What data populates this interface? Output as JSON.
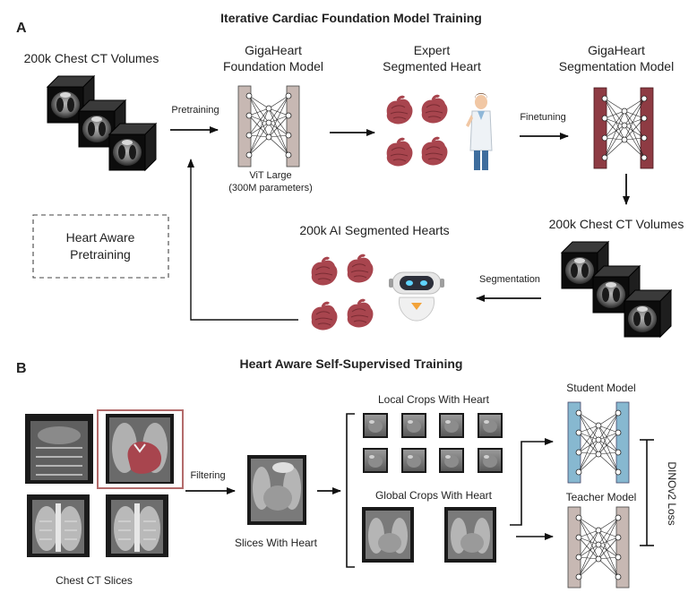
{
  "panel_a": {
    "label": "A",
    "title": "Iterative Cardiac Foundation Model Training",
    "chest_ct_volumes": "200k Chest CT Volumes",
    "pretraining": "Pretraining",
    "foundation_model_line1": "GigaHeart",
    "foundation_model_line2": "Foundation Model",
    "vit_line1": "ViT Large",
    "vit_line2": "(300M parameters)",
    "expert_line1": "Expert",
    "expert_line2": "Segmented Heart",
    "finetuning": "Finetuning",
    "seg_model_line1": "GigaHeart",
    "seg_model_line2": "Segmentation Model",
    "chest_ct_volumes_2": "200k Chest CT Volumes",
    "ai_segmented_hearts": "200k AI Segmented Hearts",
    "segmentation": "Segmentation",
    "heart_aware_line1": "Heart Aware",
    "heart_aware_line2": "Pretraining"
  },
  "panel_b": {
    "label": "B",
    "title": "Heart Aware Self-Supervised Training",
    "filtering": "Filtering",
    "chest_ct_slices": "Chest CT Slices",
    "slices_with_heart": "Slices With Heart",
    "local_crops": "Local Crops With Heart",
    "global_crops": "Global Crops With Heart",
    "student_model": "Student Model",
    "teacher_model": "Teacher Model",
    "dino_loss": "DINOv2 Loss"
  },
  "colors": {
    "heart": "#a8454e",
    "model_dark": "#8e3b43",
    "model_light": "#c7b8b3",
    "student": "#87b8d0",
    "teacher": "#c7b8b3",
    "ct_bg": "#111111",
    "outline": "#c48c8c"
  }
}
